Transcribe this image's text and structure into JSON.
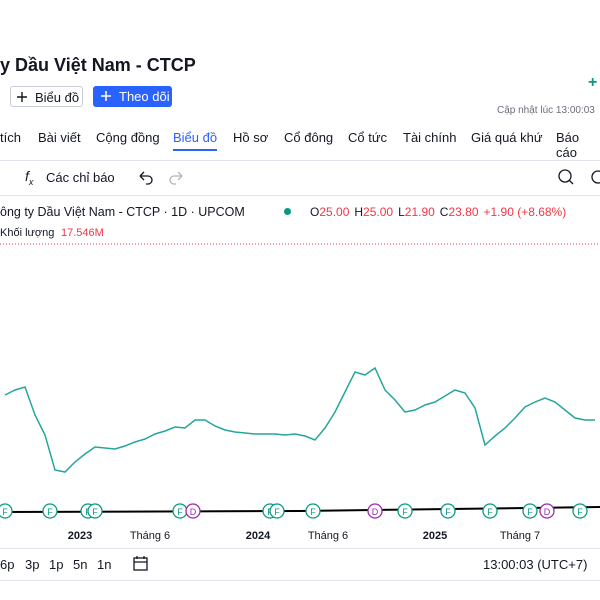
{
  "header": {
    "title": "y Dầu Việt Nam - CTCP",
    "buttons": [
      "Biểu đồ",
      "Theo dõi"
    ],
    "updated": "Cập nhật lúc  13:00:03"
  },
  "tabs": [
    "tích",
    "Bài viết",
    "Cộng đồng",
    "Biểu đồ",
    "Hồ sơ",
    "Cổ đông",
    "Cổ tức",
    "Tài chính",
    "Giá quá khứ",
    "Báo cáo"
  ],
  "active_tab": 3,
  "toolbar": {
    "indicators": "Các chỉ báo"
  },
  "chart_data": {
    "type": "line",
    "title": "ông ty Dầu Việt Nam - CTCP · 1D · UPCOM",
    "ohlc": [
      [
        "O",
        "25.00"
      ],
      [
        "H",
        "25.00"
      ],
      [
        "L",
        "21.90"
      ],
      [
        "C",
        "23.80"
      ]
    ],
    "change": "+1.90 (+8.68%)",
    "volume_label": "Khối lượng",
    "volume": "17.546M",
    "color": "#26a69a",
    "values": [
      26.3,
      26.8,
      27.1,
      24.3,
      22.3,
      18.8,
      18.6,
      19.6,
      20.4,
      21.1,
      21.0,
      20.9,
      21.2,
      21.6,
      21.9,
      22.4,
      22.7,
      23.1,
      23.0,
      23.8,
      23.8,
      23.2,
      22.8,
      22.6,
      22.5,
      22.4,
      22.4,
      22.4,
      22.3,
      22.4,
      22.2,
      21.8,
      23.0,
      24.6,
      26.6,
      28.6,
      28.3,
      29.0,
      26.8,
      25.8,
      24.6,
      24.8,
      25.3,
      25.6,
      26.2,
      26.8,
      26.5,
      25.0,
      21.3,
      22.2,
      23.0,
      24.0,
      25.1,
      25.6,
      26.0,
      25.6,
      24.8,
      24.0,
      23.8,
      23.8
    ],
    "ylim": [
      13.8,
      40.8
    ],
    "x_labels": [
      "2023",
      "Tháng 6",
      "2024",
      "Tháng 6",
      "2025",
      "Tháng 7"
    ],
    "events": [
      "F",
      "F",
      "F",
      "F",
      "F",
      "D",
      "F",
      "F",
      "F",
      "D",
      "F",
      "F",
      "F",
      "F",
      "D",
      "F"
    ]
  },
  "footer": {
    "ranges": [
      "6p",
      "3p",
      "1p",
      "5n",
      "1n"
    ],
    "clock": "13:00:03 (UTC+7)"
  }
}
